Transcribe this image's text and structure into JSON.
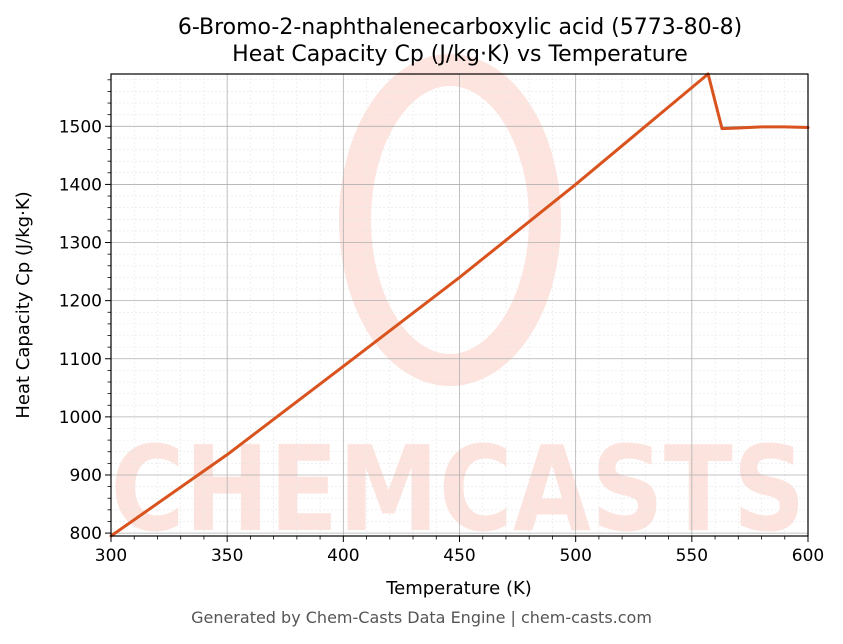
{
  "chart_data": {
    "type": "line",
    "title_line1": "6-Bromo-2-naphthalenecarboxylic acid (5773-80-8)",
    "title_line2": "Heat Capacity Cp (J/kg·K) vs Temperature",
    "xlabel": "Temperature (K)",
    "ylabel": "Heat Capacity Cp (J/kg·K)",
    "xlim": [
      300,
      600
    ],
    "ylim": [
      795,
      1590
    ],
    "xticks": [
      300,
      350,
      400,
      450,
      500,
      550,
      600
    ],
    "yticks": [
      800,
      900,
      1000,
      1100,
      1200,
      1300,
      1400,
      1500
    ],
    "grid": true,
    "series": [
      {
        "color": "#d9531e",
        "points": [
          [
            300,
            795
          ],
          [
            350,
            935
          ],
          [
            400,
            1087
          ],
          [
            450,
            1240
          ],
          [
            500,
            1400
          ],
          [
            557,
            1590
          ],
          [
            563,
            1496
          ],
          [
            570,
            1497
          ],
          [
            580,
            1499
          ],
          [
            590,
            1499
          ],
          [
            600,
            1498
          ]
        ]
      }
    ],
    "watermark": "CHEMCASTS"
  },
  "footer": "Generated by Chem-Casts Data Engine | chem-casts.com"
}
